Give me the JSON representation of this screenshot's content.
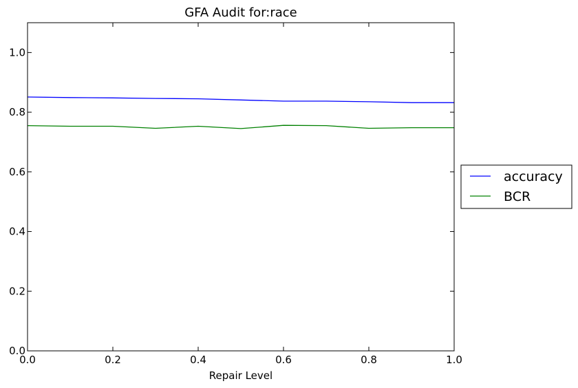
{
  "chart_data": {
    "type": "line",
    "title": "GFA Audit for:race",
    "xlabel": "Repair Level",
    "ylabel": "",
    "xlim": [
      0.0,
      1.0
    ],
    "ylim": [
      0.0,
      1.1
    ],
    "xticks": [
      "0.0",
      "0.2",
      "0.4",
      "0.6",
      "0.8",
      "1.0"
    ],
    "yticks": [
      "0.0",
      "0.2",
      "0.4",
      "0.6",
      "0.8",
      "1.0"
    ],
    "grid": false,
    "legend_position": "outside-right",
    "x": [
      0.0,
      0.1,
      0.2,
      0.3,
      0.4,
      0.5,
      0.6,
      0.7,
      0.8,
      0.9,
      1.0
    ],
    "series": [
      {
        "name": "accuracy",
        "color": "#0000ff",
        "values": [
          0.851,
          0.849,
          0.848,
          0.846,
          0.845,
          0.841,
          0.837,
          0.837,
          0.835,
          0.832,
          0.832
        ]
      },
      {
        "name": "BCR",
        "color": "#008000",
        "values": [
          0.755,
          0.753,
          0.753,
          0.746,
          0.753,
          0.745,
          0.756,
          0.755,
          0.746,
          0.748,
          0.748
        ]
      }
    ]
  }
}
